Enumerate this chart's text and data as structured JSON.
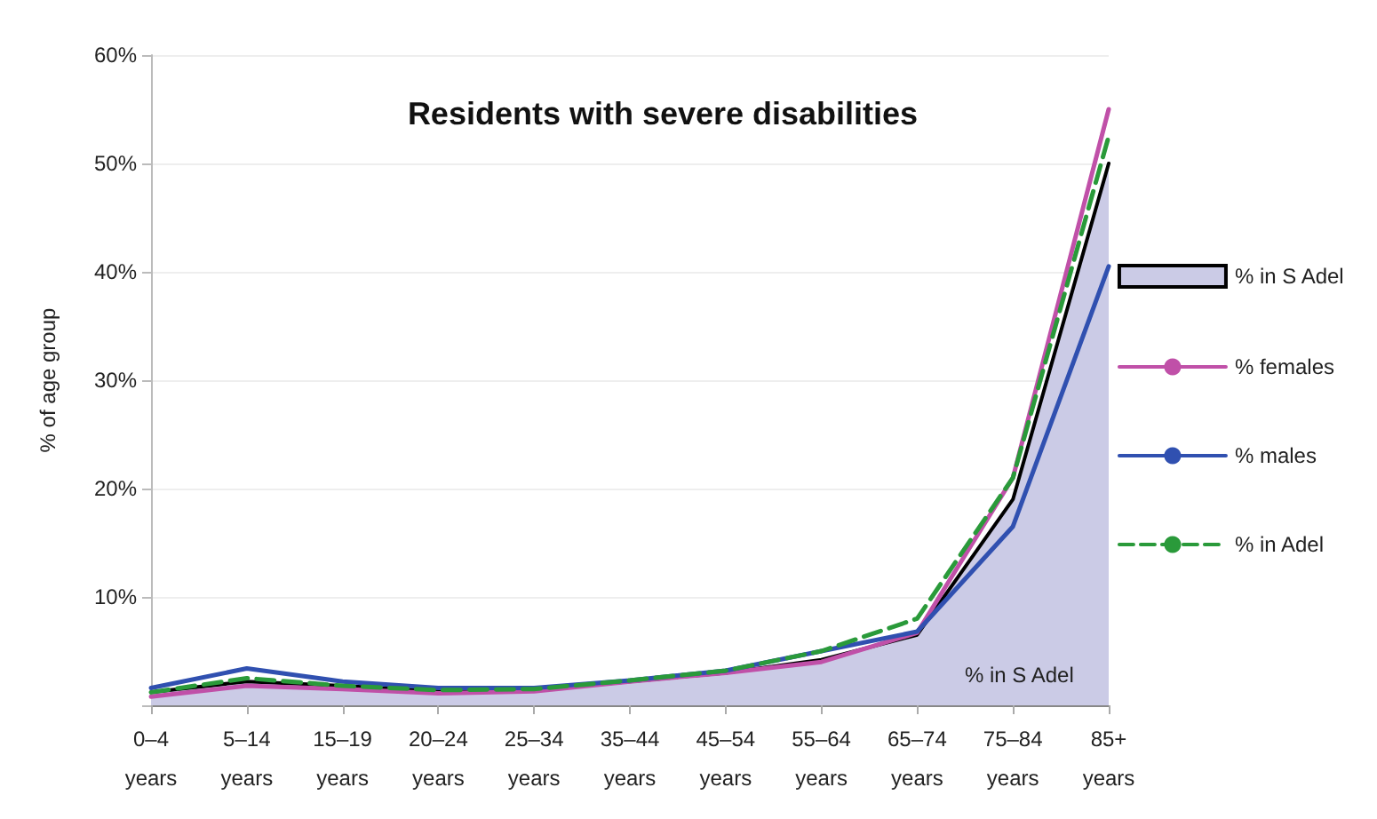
{
  "chart_data": {
    "type": "line",
    "title": "Residents with severe disabilities",
    "ylabel": "% of age group",
    "categories": [
      "0–4 years",
      "5–14 years",
      "15–19 years",
      "20–24 years",
      "25–34 years",
      "35–44 years",
      "45–54 years",
      "55–64 years",
      "65–74 years",
      "75–84 years",
      "85+ years"
    ],
    "series": [
      {
        "name": "% in S Adel",
        "type": "area",
        "color": "#cbcbe6",
        "values": [
          1.2,
          2.2,
          1.8,
          1.3,
          1.4,
          2.2,
          3.0,
          4.2,
          6.5,
          19,
          50
        ]
      },
      {
        "name": "% females",
        "color": "#c050a8",
        "values": [
          0.8,
          1.8,
          1.5,
          1.1,
          1.3,
          2.2,
          3.0,
          4.0,
          6.7,
          21,
          55
        ]
      },
      {
        "name": "% males",
        "color": "#3050b0",
        "values": [
          1.6,
          3.4,
          2.2,
          1.6,
          1.6,
          2.3,
          3.2,
          5.0,
          6.8,
          16.5,
          40.5
        ]
      },
      {
        "name": "% in Adel",
        "color": "#2a9a3a",
        "line_style": "dashed",
        "values": [
          1.2,
          2.5,
          1.8,
          1.4,
          1.5,
          2.3,
          3.2,
          5.0,
          8.0,
          21,
          52.5
        ]
      }
    ],
    "annotations": [
      "% in S Adel"
    ],
    "ylim": [
      0,
      60
    ],
    "yticks": [
      {
        "value": 0,
        "label": null
      },
      {
        "value": 10,
        "label": "10%"
      },
      {
        "value": 20,
        "label": "20%"
      },
      {
        "value": 30,
        "label": "30%"
      },
      {
        "value": 40,
        "label": "40%"
      },
      {
        "value": 50,
        "label": "50%"
      },
      {
        "value": 60,
        "label": "60%"
      }
    ],
    "grid": "y",
    "legend": "right",
    "marker": "none"
  }
}
